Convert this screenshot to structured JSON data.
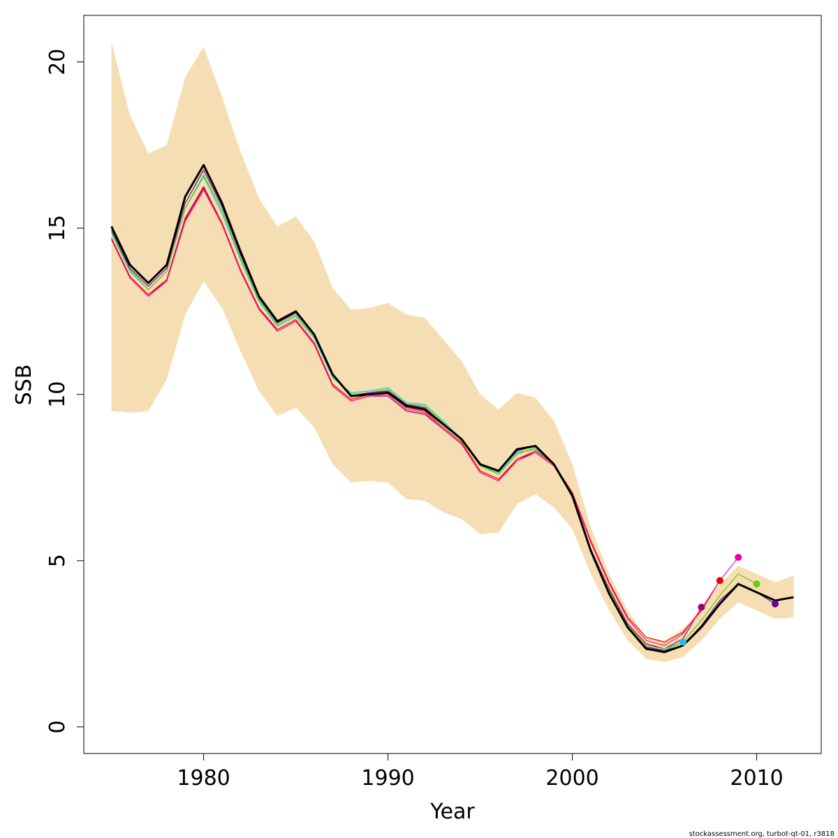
{
  "chart_data": {
    "type": "line",
    "title": "",
    "xlabel": "Year",
    "ylabel": "SSB",
    "xlim": [
      1973.5,
      2013.5
    ],
    "ylim": [
      -0.8,
      21.4
    ],
    "x_ticks": [
      1980,
      1990,
      2000,
      2010
    ],
    "y_ticks": [
      0,
      5,
      10,
      15,
      20
    ],
    "grid": false,
    "legend": "none",
    "confidence_band": {
      "color": "#F5DEB3",
      "x": [
        1975,
        1976,
        1977,
        1978,
        1979,
        1980,
        1981,
        1982,
        1983,
        1984,
        1985,
        1986,
        1987,
        1988,
        1989,
        1990,
        1991,
        1992,
        1993,
        1994,
        1995,
        1996,
        1997,
        1998,
        1999,
        2000,
        2001,
        2002,
        2003,
        2004,
        2005,
        2006,
        2007,
        2008,
        2009,
        2010,
        2011,
        2012
      ],
      "upper": [
        20.6,
        18.4,
        17.25,
        17.5,
        19.55,
        20.45,
        18.95,
        17.3,
        15.9,
        15.05,
        15.35,
        14.6,
        13.2,
        12.55,
        12.6,
        12.75,
        12.4,
        12.3,
        11.65,
        11.0,
        10.0,
        9.55,
        10.05,
        9.9,
        9.2,
        7.9,
        6.0,
        4.6,
        3.5,
        2.7,
        2.6,
        2.95,
        3.55,
        4.3,
        4.85,
        4.6,
        4.35,
        4.55
      ],
      "lower": [
        9.5,
        9.45,
        9.5,
        10.45,
        12.4,
        13.4,
        12.6,
        11.3,
        10.1,
        9.35,
        9.6,
        9.0,
        7.9,
        7.35,
        7.4,
        7.35,
        6.85,
        6.8,
        6.45,
        6.25,
        5.8,
        5.85,
        6.7,
        7.0,
        6.6,
        5.95,
        4.6,
        3.5,
        2.6,
        2.05,
        1.95,
        2.1,
        2.6,
        3.25,
        3.75,
        3.5,
        3.25,
        3.3
      ]
    },
    "series": [
      {
        "color": "#00D0D0",
        "width": 1.2,
        "endpoint": {
          "x": 2006,
          "y": 2.55,
          "color": "#22BBEE"
        },
        "x": [
          1975,
          1976,
          1977,
          1978,
          1979,
          1980,
          1981,
          1982,
          1983,
          1984,
          1985,
          1986,
          1987,
          1988,
          1989,
          1990,
          1991,
          1992,
          1993,
          1994,
          1995,
          1996,
          1997,
          1998,
          1999,
          2000,
          2001,
          2002,
          2003,
          2004,
          2005,
          2006
        ],
        "values": [
          14.85,
          13.7,
          13.15,
          13.7,
          15.6,
          16.55,
          15.45,
          14.05,
          12.8,
          12.05,
          12.35,
          11.7,
          10.5,
          10.05,
          10.1,
          10.2,
          9.75,
          9.7,
          9.2,
          8.65,
          7.85,
          7.65,
          8.25,
          8.35,
          7.9,
          6.9,
          5.25,
          4.0,
          2.95,
          2.4,
          2.3,
          2.55
        ]
      },
      {
        "color": "#990066",
        "width": 1.2,
        "endpoint": {
          "x": 2007,
          "y": 3.6,
          "color": "#990066"
        },
        "x": [
          1975,
          1976,
          1977,
          1978,
          1979,
          1980,
          1981,
          1982,
          1983,
          1984,
          1985,
          1986,
          1987,
          1988,
          1989,
          1990,
          1991,
          1992,
          1993,
          1994,
          1995,
          1996,
          1997,
          1998,
          1999,
          2000,
          2001,
          2002,
          2003,
          2004,
          2005,
          2006,
          2007
        ],
        "values": [
          14.7,
          13.5,
          12.95,
          13.45,
          15.3,
          16.25,
          15.15,
          13.75,
          12.6,
          11.9,
          12.2,
          11.5,
          10.25,
          9.8,
          9.95,
          9.95,
          9.5,
          9.4,
          8.95,
          8.5,
          7.65,
          7.4,
          8.05,
          8.25,
          7.85,
          6.95,
          5.35,
          4.15,
          3.1,
          2.5,
          2.35,
          2.65,
          3.6
        ]
      },
      {
        "color": "#EE0000",
        "width": 1.2,
        "endpoint": {
          "x": 2008,
          "y": 4.4,
          "color": "#EE0000"
        },
        "x": [
          1975,
          1976,
          1977,
          1978,
          1979,
          1980,
          1981,
          1982,
          1983,
          1984,
          1985,
          1986,
          1987,
          1988,
          1989,
          1990,
          1991,
          1992,
          1993,
          1994,
          1995,
          1996,
          1997,
          1998,
          1999,
          2000,
          2001,
          2002,
          2003,
          2004,
          2005,
          2006,
          2007,
          2008
        ],
        "values": [
          14.7,
          13.55,
          13.0,
          13.45,
          15.25,
          16.2,
          15.15,
          13.75,
          12.6,
          11.95,
          12.25,
          11.55,
          10.3,
          9.85,
          10.0,
          10.05,
          9.6,
          9.5,
          9.0,
          8.55,
          7.7,
          7.45,
          8.05,
          8.3,
          7.9,
          7.05,
          5.6,
          4.35,
          3.3,
          2.7,
          2.55,
          2.85,
          3.5,
          4.4
        ]
      },
      {
        "color": "#FF1493",
        "width": 1.2,
        "endpoint": {
          "x": 2009,
          "y": 5.1,
          "color": "#EE0099"
        },
        "x": [
          1975,
          1976,
          1977,
          1978,
          1979,
          1980,
          1981,
          1982,
          1983,
          1984,
          1985,
          1986,
          1987,
          1988,
          1989,
          1990,
          1991,
          1992,
          1993,
          1994,
          1995,
          1996,
          1997,
          1998,
          1999,
          2000,
          2001,
          2002,
          2003,
          2004,
          2005,
          2006,
          2007,
          2008,
          2009
        ],
        "values": [
          14.65,
          13.5,
          12.95,
          13.4,
          15.2,
          16.15,
          15.1,
          13.7,
          12.55,
          11.9,
          12.2,
          11.5,
          10.25,
          9.8,
          9.95,
          10.0,
          9.55,
          9.45,
          8.95,
          8.5,
          7.65,
          7.4,
          8.0,
          8.25,
          7.85,
          7.0,
          5.55,
          4.3,
          3.25,
          2.6,
          2.45,
          2.8,
          3.55,
          4.4,
          5.1
        ]
      },
      {
        "color": "#66CC00",
        "width": 1.2,
        "endpoint": {
          "x": 2010,
          "y": 4.3,
          "color": "#66CC00"
        },
        "x": [
          1975,
          1976,
          1977,
          1978,
          1979,
          1980,
          1981,
          1982,
          1983,
          1984,
          1985,
          1986,
          1987,
          1988,
          1989,
          1990,
          1991,
          1992,
          1993,
          1994,
          1995,
          1996,
          1997,
          1998,
          1999,
          2000,
          2001,
          2002,
          2003,
          2004,
          2005,
          2006,
          2007,
          2008,
          2009,
          2010
        ],
        "values": [
          14.9,
          13.75,
          13.15,
          13.7,
          15.6,
          16.6,
          15.55,
          14.1,
          12.85,
          12.1,
          12.4,
          11.75,
          10.55,
          10.0,
          10.05,
          10.15,
          9.7,
          9.65,
          9.15,
          8.6,
          7.85,
          7.6,
          8.2,
          8.4,
          7.9,
          6.95,
          5.35,
          4.1,
          3.05,
          2.45,
          2.35,
          2.55,
          3.2,
          3.95,
          4.6,
          4.3
        ]
      },
      {
        "color": "#660099",
        "width": 1.2,
        "endpoint": {
          "x": 2011,
          "y": 3.7,
          "color": "#660099"
        },
        "x": [
          1975,
          1976,
          1977,
          1978,
          1979,
          1980,
          1981,
          1982,
          1983,
          1984,
          1985,
          1986,
          1987,
          1988,
          1989,
          1990,
          1991,
          1992,
          1993,
          1994,
          1995,
          1996,
          1997,
          1998,
          1999,
          2000,
          2001,
          2002,
          2003,
          2004,
          2005,
          2006,
          2007,
          2008,
          2009,
          2010,
          2011
        ],
        "values": [
          14.95,
          13.8,
          13.25,
          13.8,
          15.75,
          16.75,
          15.65,
          14.2,
          12.9,
          12.15,
          12.45,
          11.8,
          10.6,
          9.95,
          10.05,
          10.1,
          9.7,
          9.6,
          9.1,
          8.65,
          7.9,
          7.7,
          8.3,
          8.45,
          7.9,
          6.95,
          5.3,
          4.05,
          3.0,
          2.4,
          2.3,
          2.45,
          3.05,
          3.8,
          4.3,
          4.05,
          3.7
        ]
      },
      {
        "color": "#000000",
        "width": 3.0,
        "endpoint": null,
        "x": [
          1975,
          1976,
          1977,
          1978,
          1979,
          1980,
          1981,
          1982,
          1983,
          1984,
          1985,
          1986,
          1987,
          1988,
          1989,
          1990,
          1991,
          1992,
          1993,
          1994,
          1995,
          1996,
          1997,
          1998,
          1999,
          2000,
          2001,
          2002,
          2003,
          2004,
          2005,
          2006,
          2007,
          2008,
          2009,
          2010,
          2011,
          2012
        ],
        "values": [
          15.05,
          13.9,
          13.35,
          13.9,
          15.95,
          16.9,
          15.75,
          14.3,
          12.95,
          12.2,
          12.5,
          11.8,
          10.6,
          9.95,
          10.0,
          10.05,
          9.65,
          9.55,
          9.1,
          8.65,
          7.9,
          7.7,
          8.35,
          8.45,
          7.9,
          6.95,
          5.3,
          4.0,
          3.0,
          2.35,
          2.25,
          2.45,
          3.0,
          3.7,
          4.3,
          4.05,
          3.8,
          3.9
        ]
      }
    ]
  },
  "footer": {
    "text": "stockassessment.org, turbot-qt-01, r3818"
  }
}
